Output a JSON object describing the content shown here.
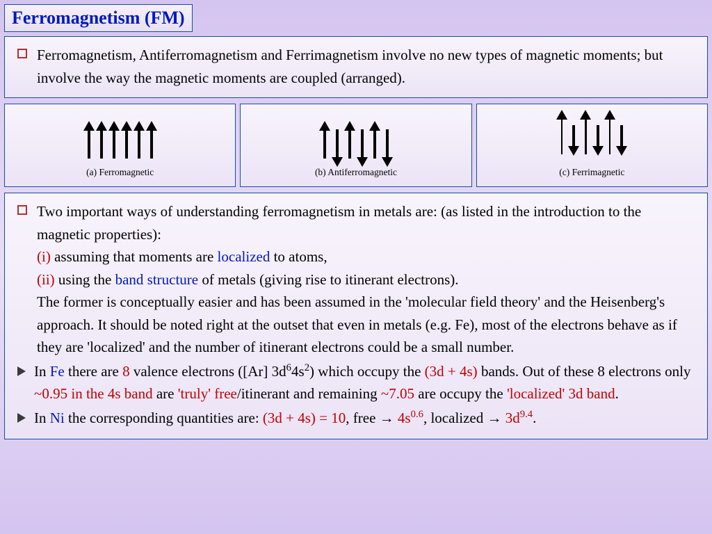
{
  "title": "Ferromagnetism (FM)",
  "intro": "Ferromagnetism, Antiferromagnetism and Ferrimagnetism involve no new types of magnetic moments; but involve the way the magnetic moments are coupled (arranged).",
  "diagrams": {
    "ferro": {
      "caption": "(a) Ferromagnetic",
      "arrows": [
        {
          "dir": "up",
          "h": 42,
          "w": 4
        },
        {
          "dir": "up",
          "h": 42,
          "w": 4
        },
        {
          "dir": "up",
          "h": 42,
          "w": 4
        },
        {
          "dir": "up",
          "h": 42,
          "w": 4
        },
        {
          "dir": "up",
          "h": 42,
          "w": 4
        },
        {
          "dir": "up",
          "h": 42,
          "w": 4
        }
      ]
    },
    "antiferro": {
      "caption": "(b) Antiferromagnetic",
      "arrows": [
        {
          "dir": "up",
          "h": 42,
          "w": 4
        },
        {
          "dir": "down",
          "h": 42,
          "w": 4
        },
        {
          "dir": "up",
          "h": 42,
          "w": 4
        },
        {
          "dir": "down",
          "h": 42,
          "w": 4
        },
        {
          "dir": "up",
          "h": 42,
          "w": 4
        },
        {
          "dir": "down",
          "h": 42,
          "w": 4
        }
      ]
    },
    "ferri": {
      "caption": "(c) Ferrimagnetic",
      "arrows": [
        {
          "dir": "up",
          "h": 52,
          "w": 2.5
        },
        {
          "dir": "down",
          "h": 32,
          "w": 4
        },
        {
          "dir": "up",
          "h": 52,
          "w": 2.5
        },
        {
          "dir": "down",
          "h": 32,
          "w": 4
        },
        {
          "dir": "up",
          "h": 52,
          "w": 2.5
        },
        {
          "dir": "down",
          "h": 32,
          "w": 4
        }
      ]
    }
  },
  "main": {
    "p1_a": "Two important ways of understanding ferromagnetism in metals are: (as listed in the introduction to the magnetic properties):",
    "i_label": "(i)",
    "i_text_a": " assuming that moments are ",
    "i_localized": "localized",
    "i_text_b": " to atoms,",
    "ii_label": "(ii)",
    "ii_text_a": " using the ",
    "ii_band": "band structure",
    "ii_text_b": " of metals (giving rise to itinerant electrons).",
    "p2": "The former is conceptually easier and has been assumed in the 'molecular field theory' and the Heisenberg's approach. It should be noted right at the outset that even in metals (e.g. Fe), most of the electrons behave as if they are 'localized' and the number of itinerant electrons could be a small number.",
    "fe_a": "In ",
    "fe_name": "Fe",
    "fe_b": " there are ",
    "fe_eight": "8",
    "fe_c": " valence electrons ([Ar] 3d",
    "fe_sup1": "6",
    "fe_d": "4s",
    "fe_sup2": "2",
    "fe_e": ") which occupy the ",
    "fe_bands": "(3d + 4s)",
    "fe_f": " bands. Out of these 8 electrons only ",
    "fe_095": "~0.95 in the 4s band",
    "fe_g": " are ",
    "fe_free": "'truly' free",
    "fe_h": "/itinerant and remaining ",
    "fe_705": "~7.05",
    "fe_i": " are occupy the ",
    "fe_loc3d": "'localized' 3d band",
    "fe_j": ".",
    "ni_a": "In ",
    "ni_name": "Ni",
    "ni_b": " the corresponding quantities are: ",
    "ni_bands": "(3d + 4s) = 10",
    "ni_c": ", free ",
    "ni_arrow1": "→",
    "ni_free": " 4s",
    "ni_free_sup": "0.6",
    "ni_d": ", localized ",
    "ni_arrow2": "→",
    "ni_loc": " 3d",
    "ni_loc_sup": "9.4",
    "ni_e": "."
  },
  "colors": {
    "border": "#1a4aa8",
    "red": "#c00000",
    "blue": "#0018c0",
    "bullet_border": "#b03030"
  }
}
